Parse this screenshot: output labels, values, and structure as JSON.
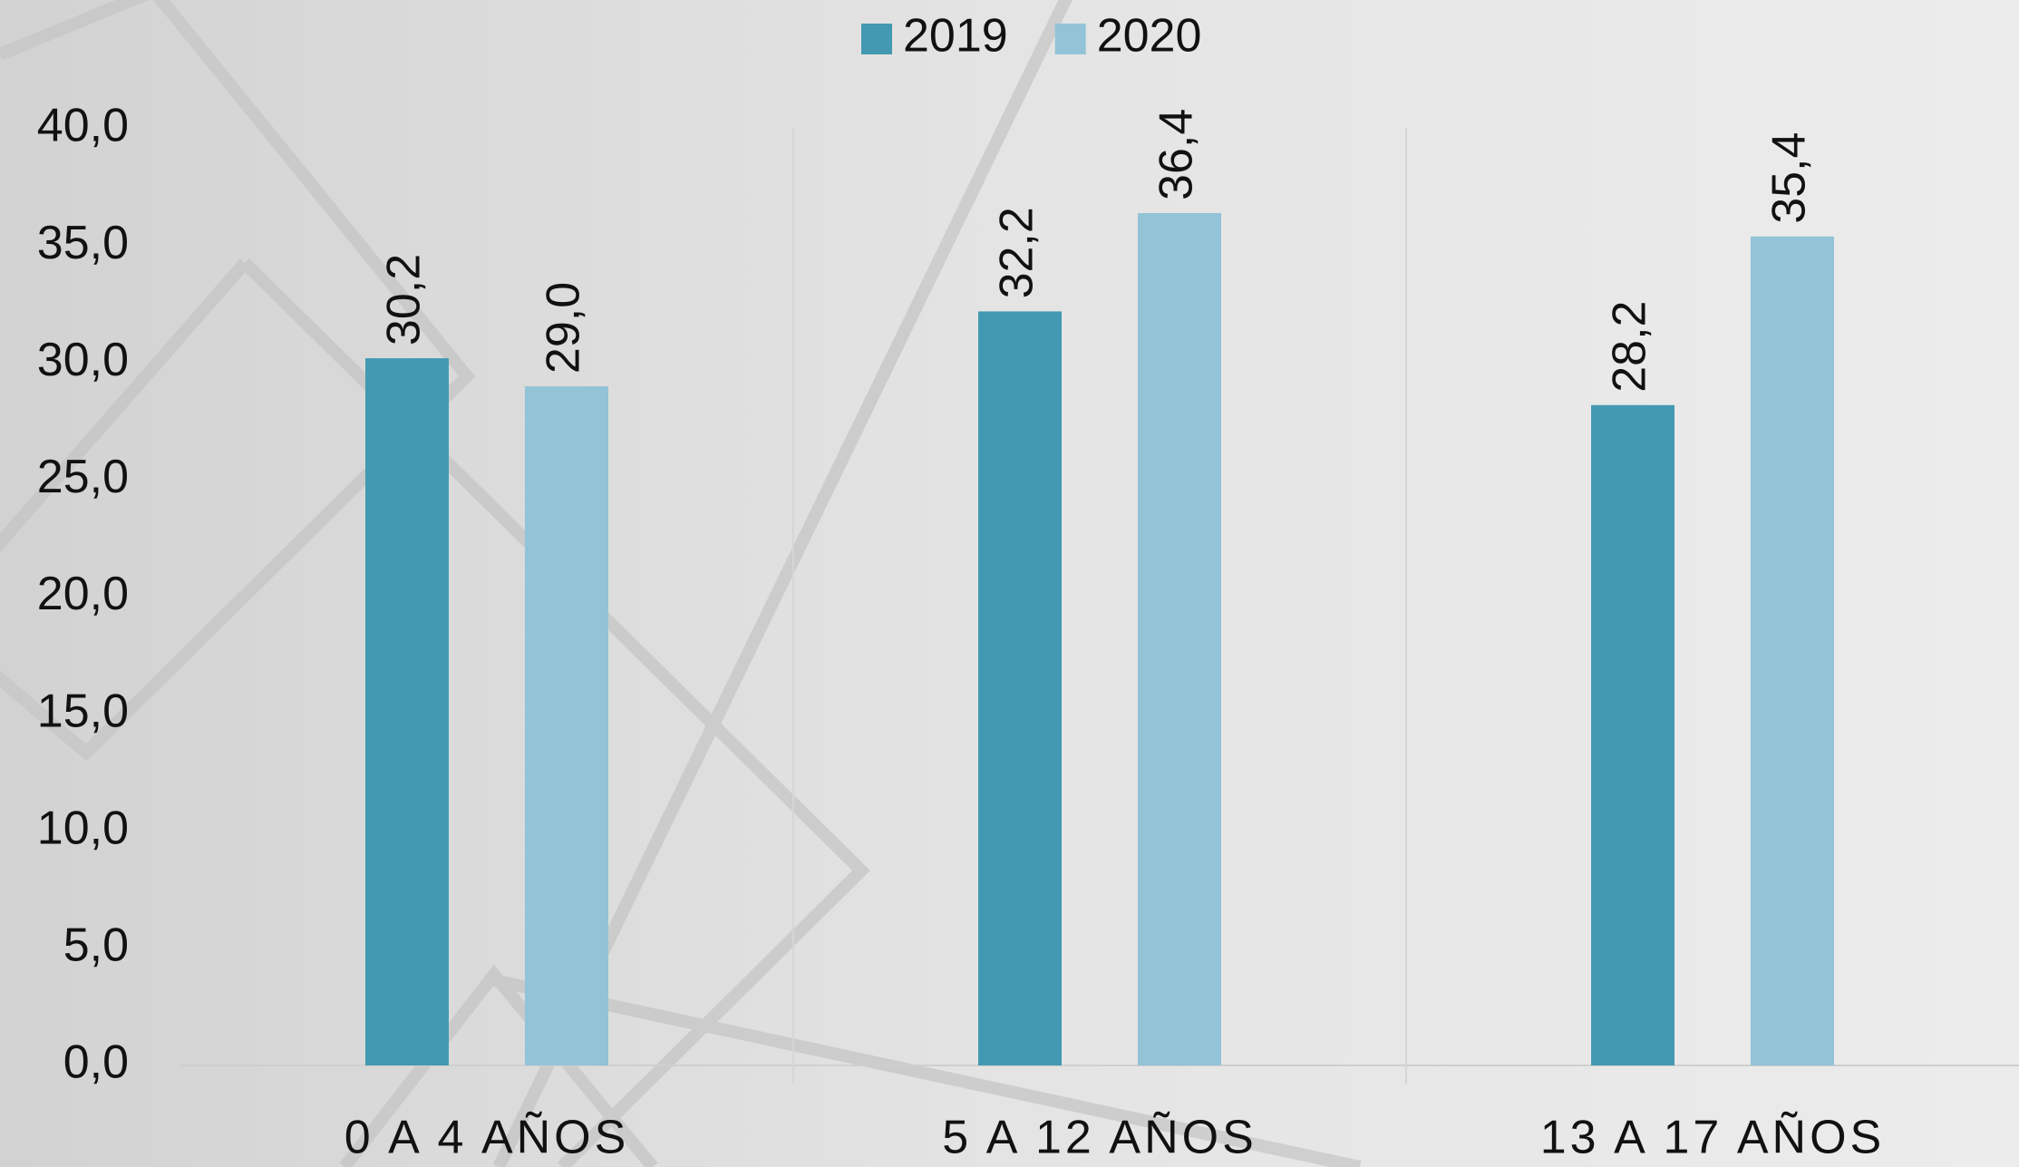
{
  "chart_data": {
    "type": "bar",
    "categories": [
      "0 A 4 AÑOS",
      "5 A 12 AÑOS",
      "13 A 17 AÑOS"
    ],
    "series": [
      {
        "name": "2019",
        "color": "#4399b1",
        "values": [
          30.2,
          32.2,
          28.2
        ],
        "value_labels": [
          "30,2",
          "32,2",
          "28,2"
        ]
      },
      {
        "name": "2020",
        "color": "#93c3d6",
        "values": [
          29.0,
          36.4,
          35.4
        ],
        "value_labels": [
          "29,0",
          "36,4",
          "35,4"
        ]
      }
    ],
    "ylim": [
      0,
      40
    ],
    "yticks": [
      {
        "value": 0,
        "label": "0,0"
      },
      {
        "value": 5,
        "label": "5,0"
      },
      {
        "value": 10,
        "label": "10,0"
      },
      {
        "value": 15,
        "label": "15,0"
      },
      {
        "value": 20,
        "label": "20,0"
      },
      {
        "value": 25,
        "label": "25,0"
      },
      {
        "value": 30,
        "label": "30,0"
      },
      {
        "value": 35,
        "label": "35,0"
      },
      {
        "value": 40,
        "label": "40,0"
      }
    ],
    "legend": "top"
  }
}
